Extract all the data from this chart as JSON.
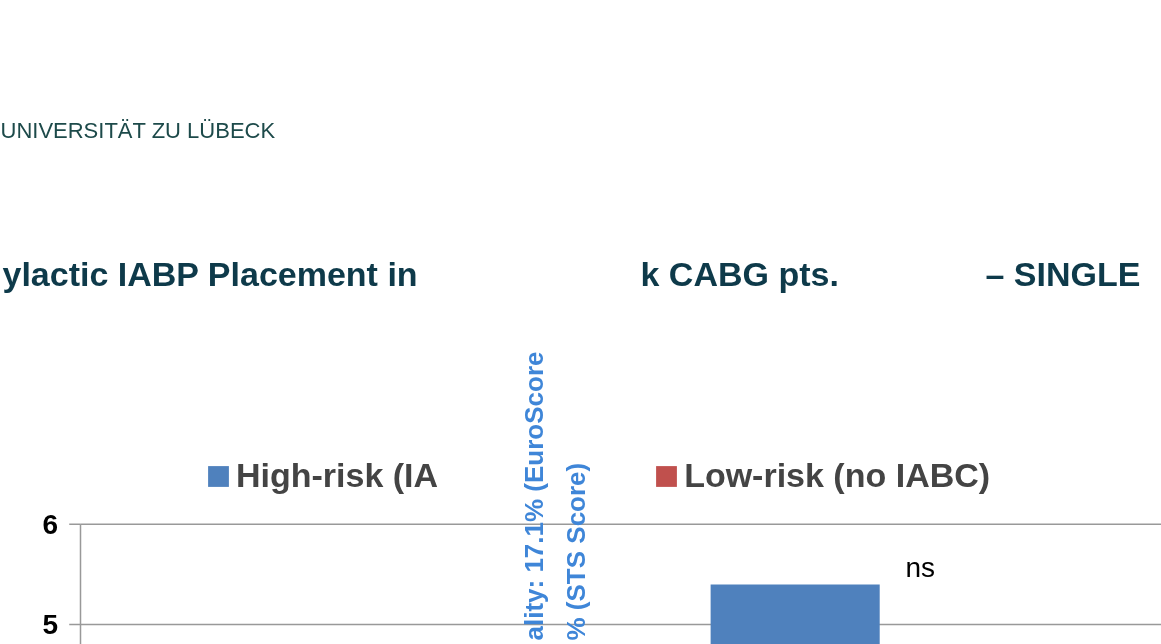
{
  "chart_data": {
    "type": "bar",
    "categories": [
      null,
      null
    ],
    "series": [
      {
        "name": "High-risk (IA",
        "color": "#4f81bd",
        "values": [
          null,
          5.4
        ]
      },
      {
        "name": "Low-risk (no IABC)",
        "color": "#c0504d",
        "values": [
          null,
          null
        ]
      }
    ],
    "ylim": [
      4.8,
      6
    ],
    "yticks": [
      5,
      6
    ],
    "grid": "y",
    "legend": "top",
    "tick_labels": "y",
    "annotations": [
      "UNIVERSITÄT ZU LÜBECK",
      "ylactic IABP Placement in",
      "k CABG pts.",
      "– SINGLE",
      "ns",
      "ality: 17.1% (EuroScore",
      "% (STS Score)"
    ]
  }
}
